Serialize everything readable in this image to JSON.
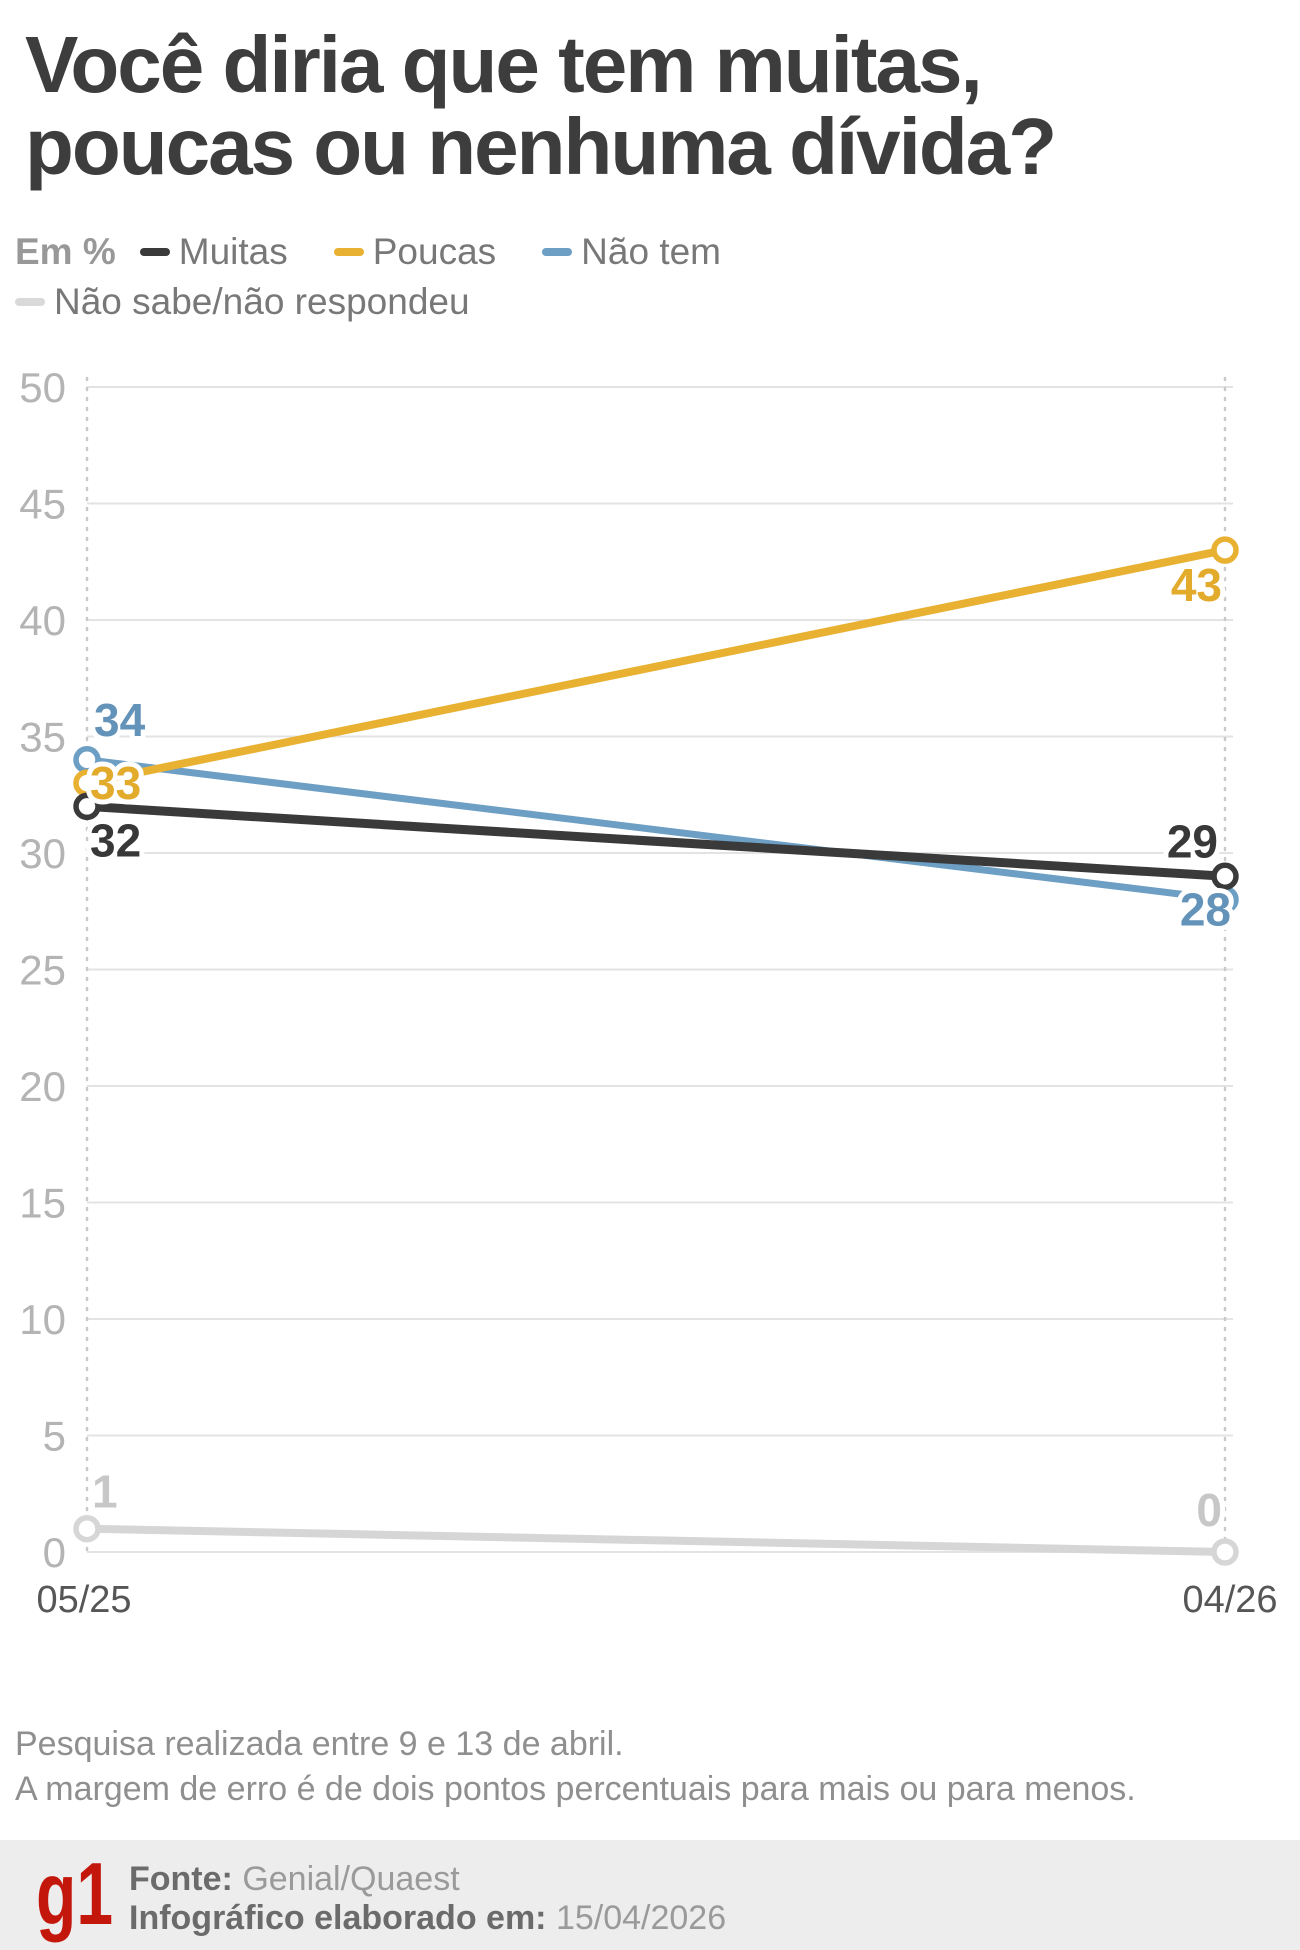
{
  "title": {
    "line1": "Você diria que tem muitas,",
    "line2": "poucas ou nenhuma dívida?"
  },
  "legend": {
    "unit_label": "Em %",
    "row1": [
      {
        "label": "Muitas",
        "color": "#3a3a3a"
      },
      {
        "label": "Poucas",
        "color": "#e8b131"
      },
      {
        "label": "Não tem",
        "color": "#6d9ec4"
      }
    ],
    "row2": [
      {
        "label": "Não sabe/não respondeu",
        "color": "#d9d9d9"
      }
    ]
  },
  "chart_data": {
    "type": "line",
    "x": [
      "05/25",
      "04/26"
    ],
    "series": [
      {
        "name": "Muitas",
        "values": [
          32,
          29
        ],
        "color": "#3a3a3a",
        "label_color": "#383838"
      },
      {
        "name": "Poucas",
        "values": [
          33,
          43
        ],
        "color": "#e8b131",
        "label_color": "#e2ab2b"
      },
      {
        "name": "Não tem",
        "values": [
          34,
          28
        ],
        "color": "#6d9ec4",
        "label_color": "#6493ba"
      },
      {
        "name": "Não sabe/não respondeu",
        "values": [
          1,
          0
        ],
        "color": "#d6d6d6",
        "label_color": "#c7c7c7"
      }
    ],
    "ylabel": "Em %",
    "ylim": [
      0,
      50
    ],
    "ytick_step": 5,
    "grid": true,
    "legend_position": "top"
  },
  "notes": {
    "line1": "Pesquisa realizada entre 9 e 13 de abril.",
    "line2": "A margem de erro é de dois pontos percentuais para mais ou para menos."
  },
  "footer": {
    "logo": "g1",
    "source_label": "Fonte:",
    "source_value": "Genial/Quaest",
    "infographic_label": "Infográfico elaborado em:",
    "infographic_date": "15/04/2026"
  }
}
